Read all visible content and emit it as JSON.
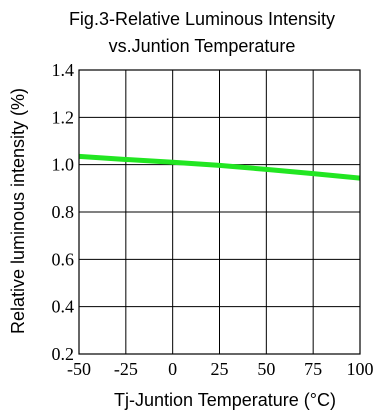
{
  "chart_data": {
    "type": "line",
    "title": "Fig.3-Relative Luminous Intensity",
    "subtitle": "vs.Juntion Temperature",
    "xlabel": "Tj-Juntion Temperature (°C)",
    "ylabel": "Relative luminous intensity (%)",
    "xlim": [
      -50,
      100
    ],
    "ylim": [
      0.2,
      1.4
    ],
    "xticks": [
      -50,
      -25,
      0,
      25,
      50,
      75,
      100
    ],
    "yticks": [
      0.2,
      0.4,
      0.6,
      0.8,
      1.0,
      1.2,
      1.4
    ],
    "xtick_labels": [
      "-50",
      "-25",
      "0",
      "25",
      "50",
      "75",
      "100"
    ],
    "ytick_labels": [
      "0.2",
      "0.4",
      "0.6",
      "0.8",
      "1.0",
      "1.2",
      "1.4"
    ],
    "grid": true,
    "series": [
      {
        "color": "#22e622",
        "x": [
          -50,
          -25,
          0,
          25,
          50,
          75,
          100
        ],
        "y": [
          1.035,
          1.022,
          1.01,
          0.997,
          0.98,
          0.962,
          0.943
        ]
      }
    ]
  }
}
